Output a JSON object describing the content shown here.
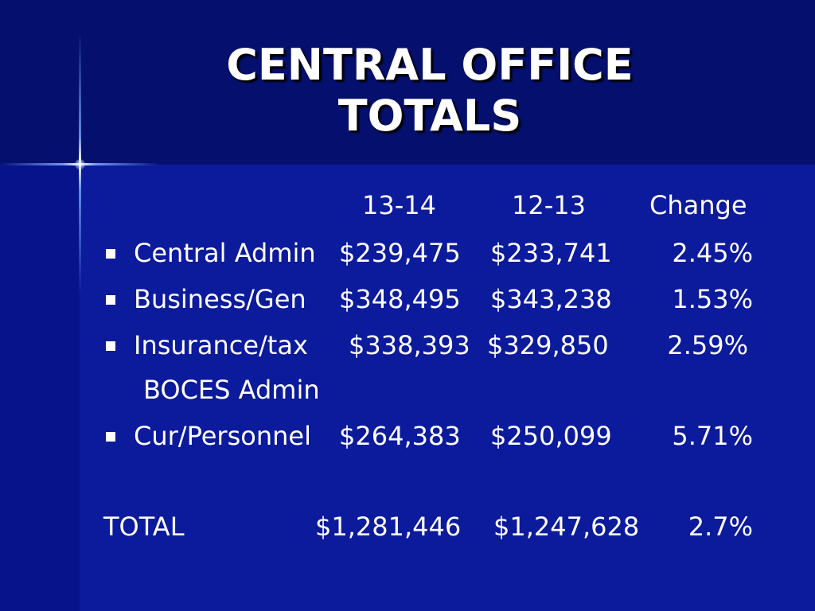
{
  "title": {
    "line1": "CENTRAL OFFICE",
    "line2": "TOTALS"
  },
  "header": {
    "col1": "13-14",
    "col2": "12-13",
    "col3": "Change"
  },
  "rows": [
    {
      "label": "Central Admin",
      "v1": "$239,475",
      "v2": "$233,741",
      "change": "2.45%"
    },
    {
      "label": "Business/Gen",
      "v1": "$348,495",
      "v2": "$343,238",
      "change": "1.53%"
    },
    {
      "label": "Insurance/tax",
      "label_line2": "BOCES Admin",
      "v1": "$338,393",
      "v2": "$329,850",
      "change": "2.59%"
    },
    {
      "label": "Cur/Personnel",
      "v1": "$264,383",
      "v2": "$250,099",
      "change": "5.71%"
    }
  ],
  "total": {
    "label": "TOTAL",
    "v1": "$1,281,446",
    "v2": "$1,247,628",
    "change": "2.7%"
  }
}
